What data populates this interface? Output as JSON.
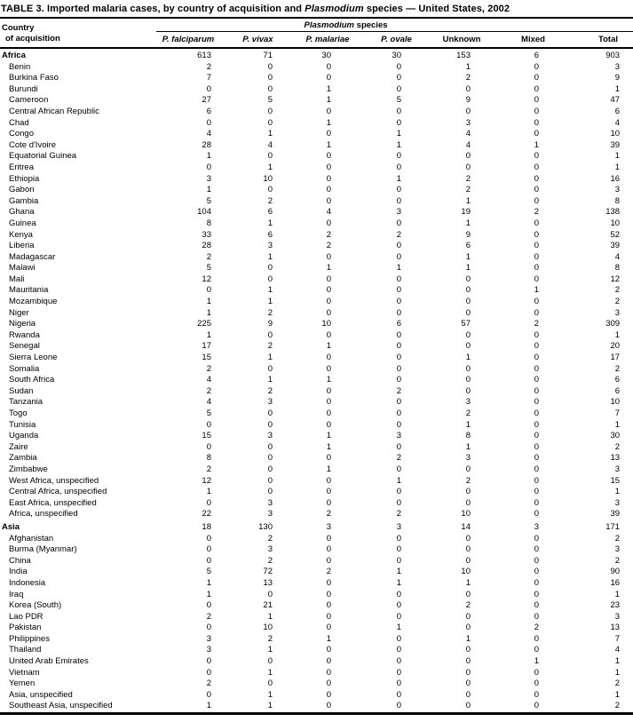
{
  "title": {
    "part1": "TABLE 3. Imported malaria cases, by country of acquisition and ",
    "genus": "Plasmodium",
    "part2": " species — United States, 2002"
  },
  "header": {
    "country_line1": "Country",
    "country_line2": "of acquisition",
    "species_group_genus": "Plasmodium",
    "species_group_rest": " species",
    "columns": [
      {
        "label": "P. falciparum"
      },
      {
        "label": "P. vivax"
      },
      {
        "label": "P. malariae"
      },
      {
        "label": "P. ovale"
      },
      {
        "label": "Unknown"
      },
      {
        "label": "Mixed"
      },
      {
        "label": "Total"
      }
    ]
  },
  "table": {
    "regions": [
      {
        "label": "Africa",
        "values": [
          613,
          71,
          30,
          30,
          153,
          6,
          903
        ],
        "subrows": [
          {
            "label": "Benin",
            "values": [
              2,
              0,
              0,
              0,
              1,
              0,
              3
            ]
          },
          {
            "label": "Burkina Faso",
            "values": [
              7,
              0,
              0,
              0,
              2,
              0,
              9
            ]
          },
          {
            "label": "Burundi",
            "values": [
              0,
              0,
              1,
              0,
              0,
              0,
              1
            ]
          },
          {
            "label": "Cameroon",
            "values": [
              27,
              5,
              1,
              5,
              9,
              0,
              47
            ]
          },
          {
            "label": "Central African Republic",
            "values": [
              6,
              0,
              0,
              0,
              0,
              0,
              6
            ]
          },
          {
            "label": "Chad",
            "values": [
              0,
              0,
              1,
              0,
              3,
              0,
              4
            ]
          },
          {
            "label": "Congo",
            "values": [
              4,
              1,
              0,
              1,
              4,
              0,
              10
            ]
          },
          {
            "label": "Cote d'Ivoire",
            "values": [
              28,
              4,
              1,
              1,
              4,
              1,
              39
            ]
          },
          {
            "label": "Equatorial Guinea",
            "values": [
              1,
              0,
              0,
              0,
              0,
              0,
              1
            ]
          },
          {
            "label": "Eritrea",
            "values": [
              0,
              1,
              0,
              0,
              0,
              0,
              1
            ]
          },
          {
            "label": "Ethiopia",
            "values": [
              3,
              10,
              0,
              1,
              2,
              0,
              16
            ]
          },
          {
            "label": "Gabon",
            "values": [
              1,
              0,
              0,
              0,
              2,
              0,
              3
            ]
          },
          {
            "label": "Gambia",
            "values": [
              5,
              2,
              0,
              0,
              1,
              0,
              8
            ]
          },
          {
            "label": "Ghana",
            "values": [
              104,
              6,
              4,
              3,
              19,
              2,
              138
            ]
          },
          {
            "label": "Guinea",
            "values": [
              8,
              1,
              0,
              0,
              1,
              0,
              10
            ]
          },
          {
            "label": "Kenya",
            "values": [
              33,
              6,
              2,
              2,
              9,
              0,
              52
            ]
          },
          {
            "label": "Liberia",
            "values": [
              28,
              3,
              2,
              0,
              6,
              0,
              39
            ]
          },
          {
            "label": "Madagascar",
            "values": [
              2,
              1,
              0,
              0,
              1,
              0,
              4
            ]
          },
          {
            "label": "Malawi",
            "values": [
              5,
              0,
              1,
              1,
              1,
              0,
              8
            ]
          },
          {
            "label": "Mali",
            "values": [
              12,
              0,
              0,
              0,
              0,
              0,
              12
            ]
          },
          {
            "label": "Mauritania",
            "values": [
              0,
              1,
              0,
              0,
              0,
              1,
              2
            ]
          },
          {
            "label": "Mozambique",
            "values": [
              1,
              1,
              0,
              0,
              0,
              0,
              2
            ]
          },
          {
            "label": "Niger",
            "values": [
              1,
              2,
              0,
              0,
              0,
              0,
              3
            ]
          },
          {
            "label": "Nigeria",
            "values": [
              225,
              9,
              10,
              6,
              57,
              2,
              309
            ]
          },
          {
            "label": "Rwanda",
            "values": [
              1,
              0,
              0,
              0,
              0,
              0,
              1
            ]
          },
          {
            "label": "Senegal",
            "values": [
              17,
              2,
              1,
              0,
              0,
              0,
              20
            ]
          },
          {
            "label": "Sierra Leone",
            "values": [
              15,
              1,
              0,
              0,
              1,
              0,
              17
            ]
          },
          {
            "label": "Somalia",
            "values": [
              2,
              0,
              0,
              0,
              0,
              0,
              2
            ]
          },
          {
            "label": "South Africa",
            "values": [
              4,
              1,
              1,
              0,
              0,
              0,
              6
            ]
          },
          {
            "label": "Sudan",
            "values": [
              2,
              2,
              0,
              2,
              0,
              0,
              6
            ]
          },
          {
            "label": "Tanzania",
            "values": [
              4,
              3,
              0,
              0,
              3,
              0,
              10
            ]
          },
          {
            "label": "Togo",
            "values": [
              5,
              0,
              0,
              0,
              2,
              0,
              7
            ]
          },
          {
            "label": "Tunisia",
            "values": [
              0,
              0,
              0,
              0,
              1,
              0,
              1
            ]
          },
          {
            "label": "Uganda",
            "values": [
              15,
              3,
              1,
              3,
              8,
              0,
              30
            ]
          },
          {
            "label": "Zaire",
            "values": [
              0,
              0,
              1,
              0,
              1,
              0,
              2
            ]
          },
          {
            "label": "Zambia",
            "values": [
              8,
              0,
              0,
              2,
              3,
              0,
              13
            ]
          },
          {
            "label": "Zimbabwe",
            "values": [
              2,
              0,
              1,
              0,
              0,
              0,
              3
            ]
          },
          {
            "label": "West Africa, unspecified",
            "values": [
              12,
              0,
              0,
              1,
              2,
              0,
              15
            ]
          },
          {
            "label": "Central Africa, unspecified",
            "values": [
              1,
              0,
              0,
              0,
              0,
              0,
              1
            ]
          },
          {
            "label": "East Africa, unspecified",
            "values": [
              0,
              3,
              0,
              0,
              0,
              0,
              3
            ]
          },
          {
            "label": "Africa, unspecified",
            "values": [
              22,
              3,
              2,
              2,
              10,
              0,
              39
            ]
          }
        ]
      },
      {
        "label": "Asia",
        "values": [
          18,
          130,
          3,
          3,
          14,
          3,
          171
        ],
        "subrows": [
          {
            "label": "Afghanistan",
            "values": [
              0,
              2,
              0,
              0,
              0,
              0,
              2
            ]
          },
          {
            "label": "Burma (Myanmar)",
            "values": [
              0,
              3,
              0,
              0,
              0,
              0,
              3
            ]
          },
          {
            "label": "China",
            "values": [
              0,
              2,
              0,
              0,
              0,
              0,
              2
            ]
          },
          {
            "label": "India",
            "values": [
              5,
              72,
              2,
              1,
              10,
              0,
              90
            ]
          },
          {
            "label": "Indonesia",
            "values": [
              1,
              13,
              0,
              1,
              1,
              0,
              16
            ]
          },
          {
            "label": "Iraq",
            "values": [
              1,
              0,
              0,
              0,
              0,
              0,
              1
            ]
          },
          {
            "label": "Korea (South)",
            "values": [
              0,
              21,
              0,
              0,
              2,
              0,
              23
            ]
          },
          {
            "label": "Lao PDR",
            "values": [
              2,
              1,
              0,
              0,
              0,
              0,
              3
            ]
          },
          {
            "label": "Pakistan",
            "values": [
              0,
              10,
              0,
              1,
              0,
              2,
              13
            ]
          },
          {
            "label": "Philippines",
            "values": [
              3,
              2,
              1,
              0,
              1,
              0,
              7
            ]
          },
          {
            "label": "Thailand",
            "values": [
              3,
              1,
              0,
              0,
              0,
              0,
              4
            ]
          },
          {
            "label": "United Arab Emirates",
            "values": [
              0,
              0,
              0,
              0,
              0,
              1,
              1
            ]
          },
          {
            "label": "Vietnam",
            "values": [
              0,
              1,
              0,
              0,
              0,
              0,
              1
            ]
          },
          {
            "label": "Yemen",
            "values": [
              2,
              0,
              0,
              0,
              0,
              0,
              2
            ]
          },
          {
            "label": "Asia, unspecified",
            "values": [
              0,
              1,
              0,
              0,
              0,
              0,
              1
            ]
          },
          {
            "label": "Southeast Asia, unspecified",
            "values": [
              1,
              1,
              0,
              0,
              0,
              0,
              2
            ]
          }
        ]
      }
    ]
  }
}
